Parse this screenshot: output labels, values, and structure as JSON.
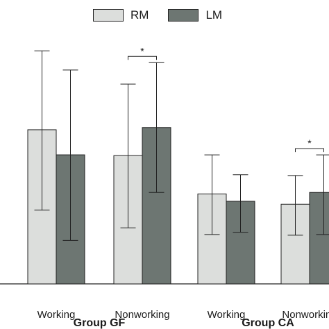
{
  "chart_data": {
    "type": "bar",
    "title": "",
    "xlabel": "",
    "ylabel": "",
    "legend": [
      {
        "name": "RM",
        "color": "#dcdedc"
      },
      {
        "name": "LM",
        "color": "#6d7672"
      }
    ],
    "legend_placement": "top",
    "groups": [
      "Group  GF",
      "Group CA"
    ],
    "categories": [
      "Working",
      "Nonworking",
      "Working",
      "Nonworking"
    ],
    "category_group": [
      0,
      0,
      1,
      1
    ],
    "ylim": [
      0,
      320
    ],
    "grid": false,
    "series": [
      {
        "name": "RM",
        "color": "#dcdedc",
        "values": [
          209,
          174,
          122,
          108
        ],
        "err_low": [
          100,
          76,
          67,
          66
        ],
        "err_high": [
          316,
          271,
          175,
          147
        ]
      },
      {
        "name": "LM",
        "color": "#6d7672",
        "values": [
          175,
          212,
          112,
          124
        ],
        "err_low": [
          59,
          124,
          70,
          67
        ],
        "err_high": [
          290,
          300,
          148,
          175
        ]
      }
    ],
    "significance": [
      {
        "category": 1,
        "label": "*"
      },
      {
        "category": 3,
        "label": "*"
      }
    ]
  }
}
